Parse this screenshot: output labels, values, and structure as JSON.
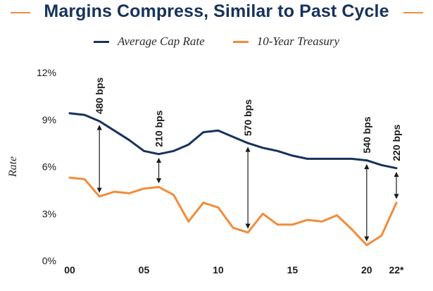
{
  "header": {
    "title": "Margins Compress, Similar to Past Cycle",
    "accent_color": "#f28c3a"
  },
  "legend": {
    "series_1": "Average Cap Rate",
    "series_2": "10-Year Treasury"
  },
  "chart_data": {
    "type": "line",
    "title": "Margins Compress, Similar to Past Cycle",
    "xlabel": "",
    "ylabel": "Rate",
    "x": [
      2000,
      2001,
      2002,
      2003,
      2004,
      2005,
      2006,
      2007,
      2008,
      2009,
      2010,
      2011,
      2012,
      2013,
      2014,
      2015,
      2016,
      2017,
      2018,
      2019,
      2020,
      2021,
      2022
    ],
    "x_tick_labels": [
      {
        "x": 2000,
        "label": "00"
      },
      {
        "x": 2005,
        "label": "05"
      },
      {
        "x": 2010,
        "label": "10"
      },
      {
        "x": 2015,
        "label": "15"
      },
      {
        "x": 2020,
        "label": "20"
      },
      {
        "x": 2022,
        "label": "22*"
      }
    ],
    "xlim": [
      2000,
      2022
    ],
    "ylim": [
      0,
      12
    ],
    "y_ticks": [
      0,
      3,
      6,
      9,
      12
    ],
    "y_tick_labels": [
      "0%",
      "3%",
      "6%",
      "9%",
      "12%"
    ],
    "grid": false,
    "legend_position": "top-center",
    "series": [
      {
        "name": "Average Cap Rate",
        "color": "#17325c",
        "values": [
          9.4,
          9.3,
          8.9,
          8.3,
          7.7,
          7.0,
          6.8,
          7.0,
          7.4,
          8.2,
          8.3,
          7.9,
          7.5,
          7.2,
          7.0,
          6.7,
          6.5,
          6.5,
          6.5,
          6.5,
          6.4,
          6.1,
          5.9
        ]
      },
      {
        "name": "10-Year Treasury",
        "color": "#f28c3a",
        "values": [
          5.3,
          5.2,
          4.1,
          4.4,
          4.3,
          4.6,
          4.7,
          4.2,
          2.5,
          3.7,
          3.4,
          2.1,
          1.8,
          3.0,
          2.3,
          2.3,
          2.6,
          2.5,
          2.9,
          2.0,
          1.0,
          1.6,
          3.7
        ]
      }
    ],
    "annotations": [
      {
        "x": 2002,
        "text": "480 bps"
      },
      {
        "x": 2006,
        "text": "210 bps"
      },
      {
        "x": 2012,
        "text": "570 bps"
      },
      {
        "x": 2020,
        "text": "540 bps"
      },
      {
        "x": 2022,
        "text": "220 bps"
      }
    ]
  }
}
